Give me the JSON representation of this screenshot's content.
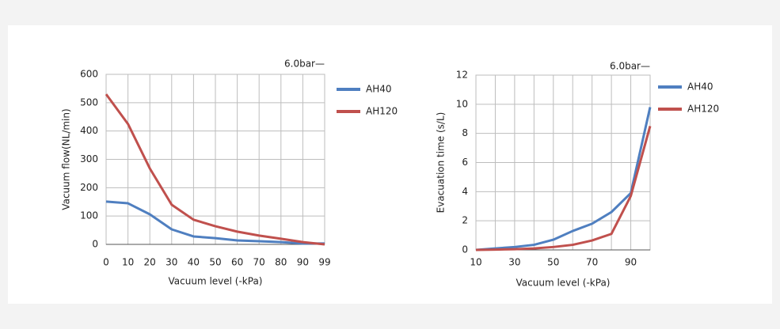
{
  "chart_data": [
    {
      "type": "line",
      "annotation": "6.0bar—",
      "x_label": "Vacuum level  (-kPa)",
      "y_label": "Vacuum flow(NL/min)",
      "categories": [
        "0",
        "10",
        "20",
        "30",
        "40",
        "50",
        "60",
        "70",
        "80",
        "90",
        "99"
      ],
      "series": [
        {
          "name": "AH40",
          "color": "#4f7fc0",
          "values": [
            151,
            145,
            106,
            53,
            28,
            22,
            14,
            11,
            8,
            3,
            3
          ]
        },
        {
          "name": "AH120",
          "color": "#c0504d",
          "values": [
            530,
            425,
            268,
            140,
            87,
            64,
            45,
            31,
            20,
            8,
            0
          ]
        }
      ],
      "ylim": [
        0,
        600
      ],
      "yticks": [
        0,
        100,
        200,
        300,
        400,
        500,
        600
      ],
      "grid": true
    },
    {
      "type": "line",
      "annotation": "6.0bar—",
      "x_label": "Vacuum level  (-kPa)",
      "y_label": "Evacuation time (s/L)",
      "x": [
        10,
        20,
        30,
        40,
        50,
        60,
        70,
        80,
        90,
        100
      ],
      "series": [
        {
          "name": "AH40",
          "color": "#4f7fc0",
          "values": [
            0,
            0.1,
            0.2,
            0.35,
            0.7,
            1.3,
            1.8,
            2.6,
            3.9,
            9.8
          ]
        },
        {
          "name": "AH120",
          "color": "#c0504d",
          "values": [
            0,
            0.02,
            0.05,
            0.1,
            0.2,
            0.35,
            0.65,
            1.1,
            3.7,
            8.5
          ]
        }
      ],
      "xlim": [
        10,
        100
      ],
      "xticks": [
        10,
        30,
        50,
        70,
        90
      ],
      "xgrid": [
        10,
        20,
        30,
        40,
        50,
        60,
        70,
        80,
        90,
        100
      ],
      "ylim": [
        0,
        12
      ],
      "yticks": [
        0,
        2,
        4,
        6,
        8,
        10,
        12
      ],
      "grid": true
    }
  ]
}
